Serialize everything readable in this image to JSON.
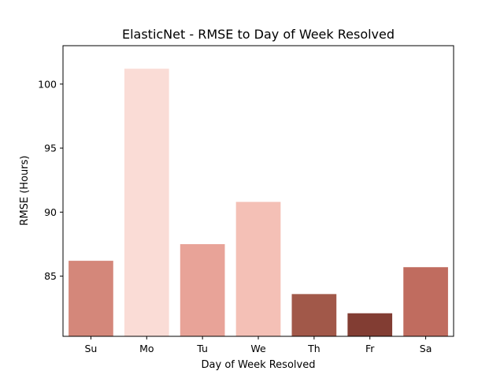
{
  "chart_data": {
    "type": "bar",
    "title": "ElasticNet - RMSE to Day of Week Resolved",
    "xlabel": "Day of Week Resolved",
    "ylabel": "RMSE (Hours)",
    "categories": [
      "Su",
      "Mo",
      "Tu",
      "We",
      "Th",
      "Fr",
      "Sa"
    ],
    "values": [
      86.2,
      101.2,
      87.5,
      90.8,
      83.6,
      82.1,
      85.7
    ],
    "bar_colors": [
      "#d4877a",
      "#fadcd6",
      "#e8a398",
      "#f4c0b6",
      "#a15849",
      "#823d33",
      "#c06c5f"
    ],
    "ylim": [
      80.3,
      103.0
    ],
    "yticks": [
      85,
      90,
      95,
      100
    ],
    "grid": false,
    "legend": false
  }
}
